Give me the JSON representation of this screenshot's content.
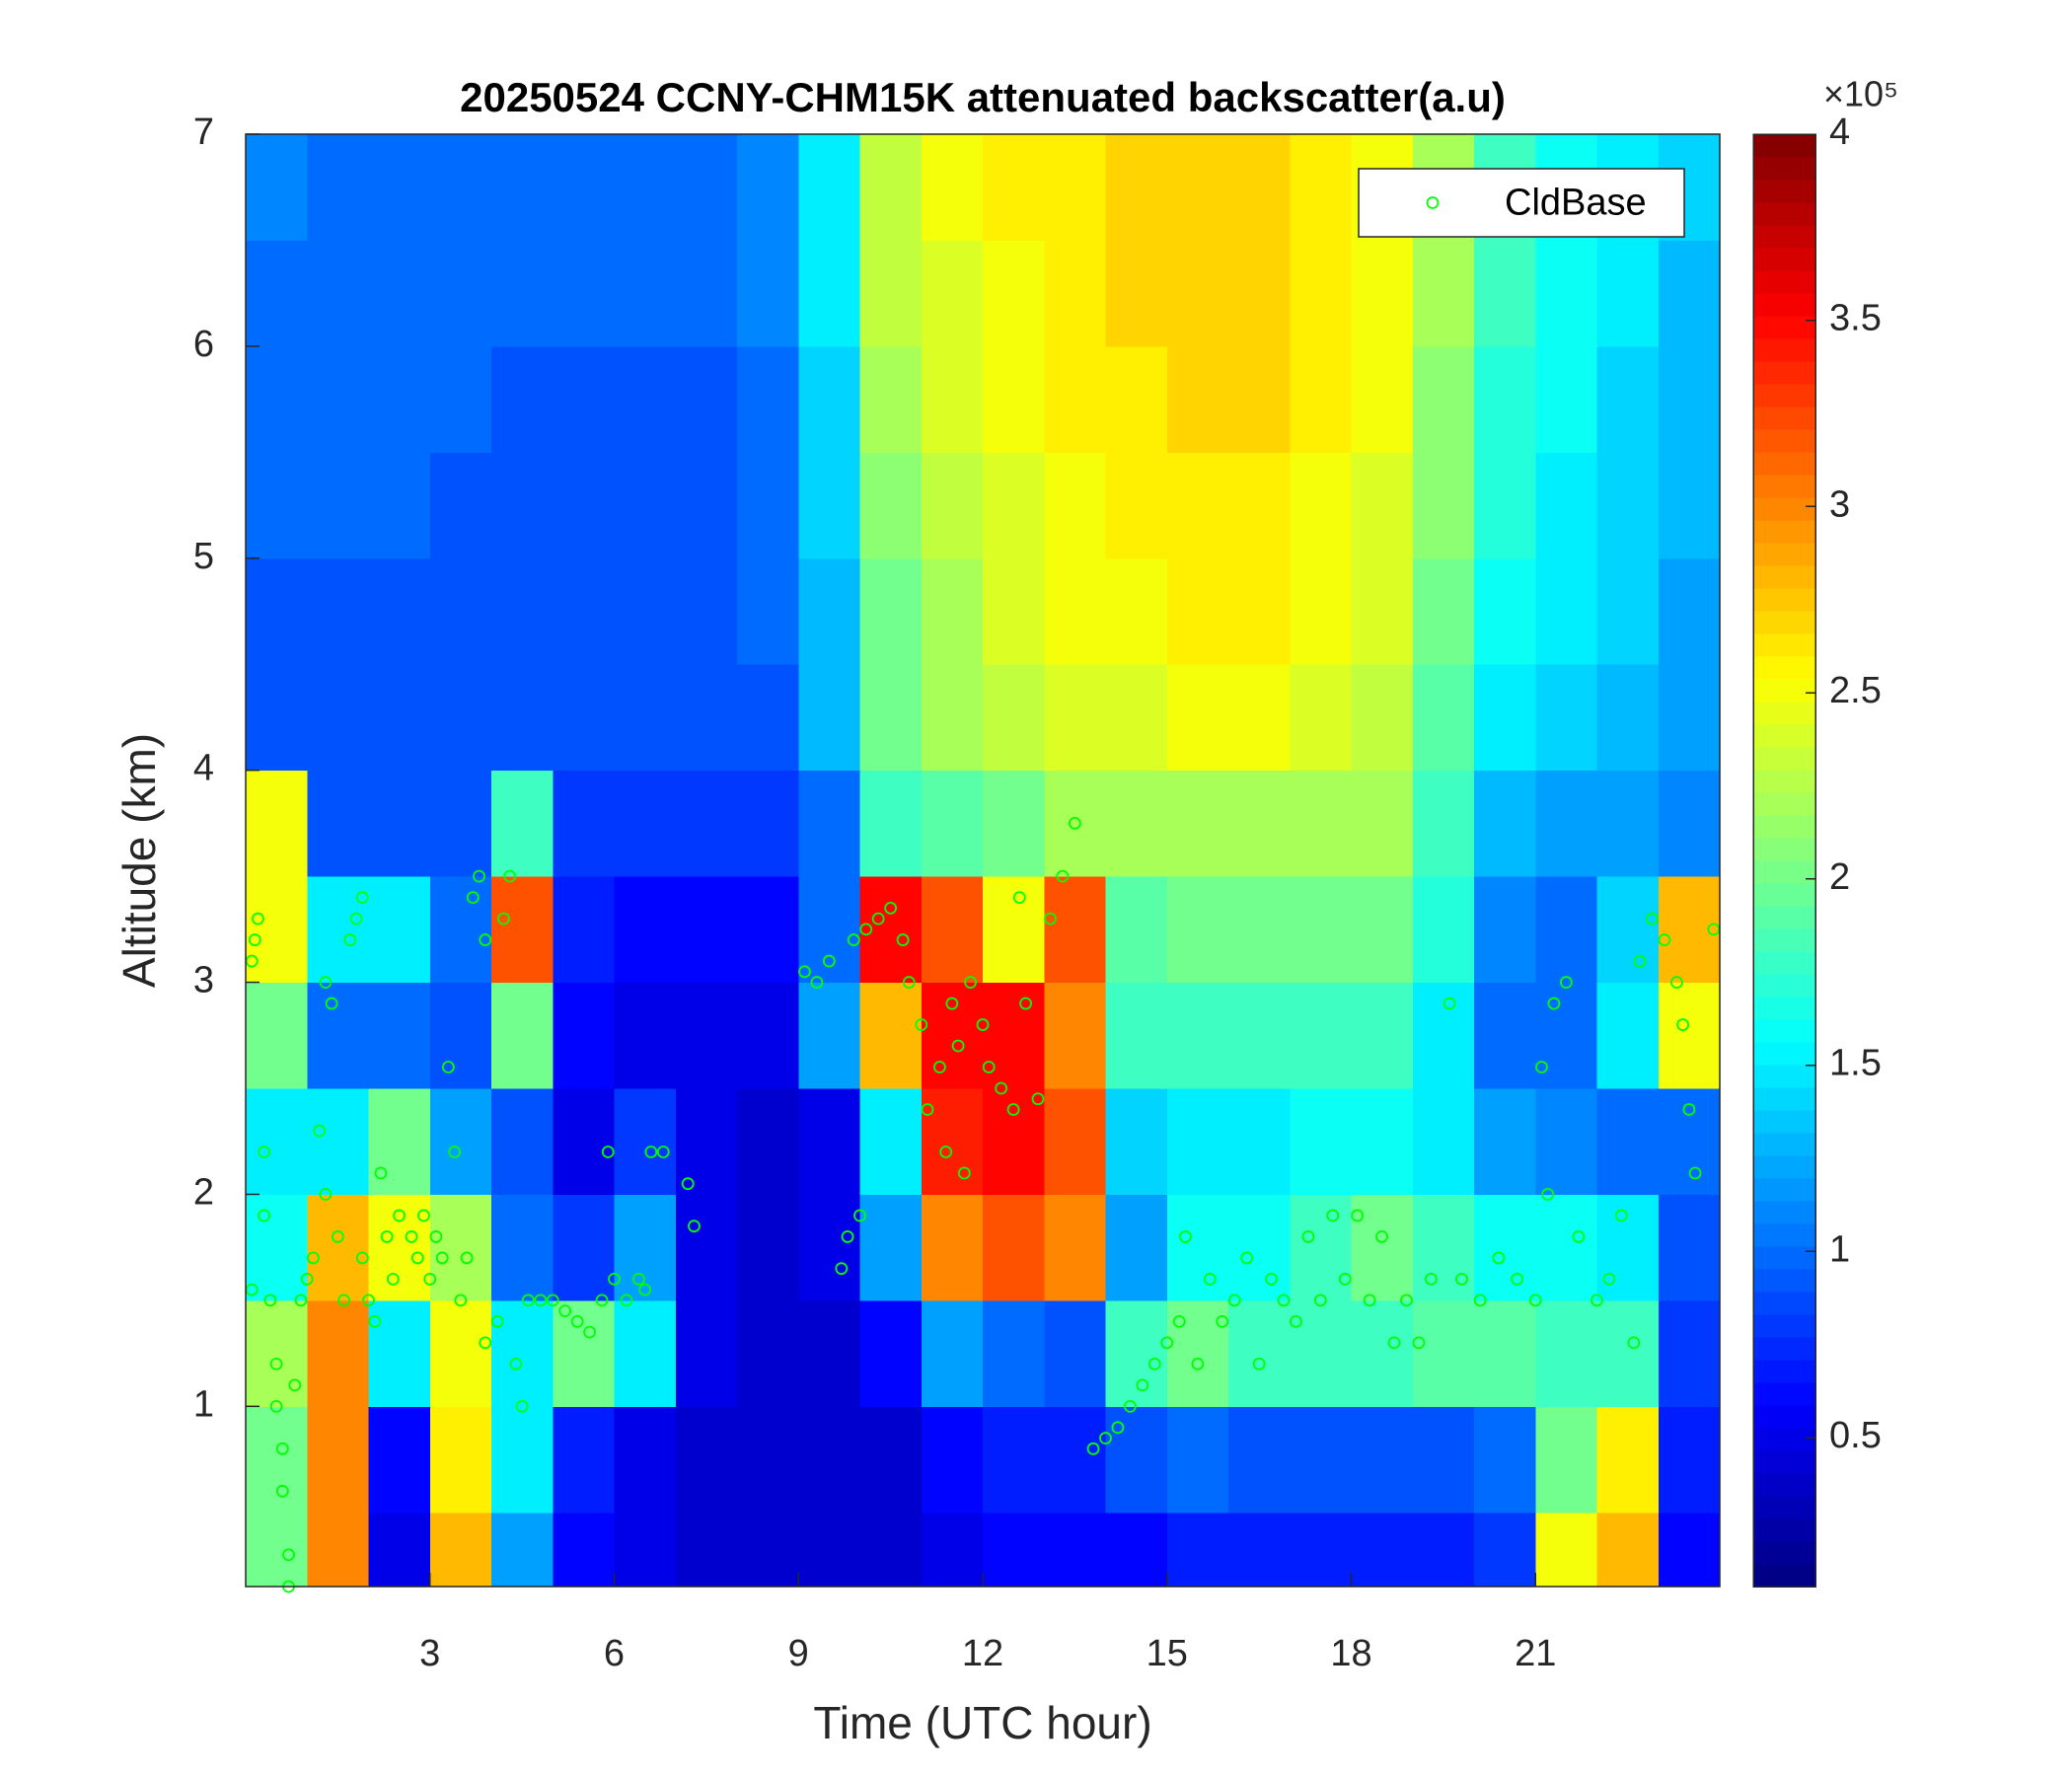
{
  "chart_data": {
    "type": "heatmap",
    "title": "20250524 CCNY-CHM15K attenuated backscatter(a.u)",
    "xlabel": "Time (UTC hour)",
    "ylabel": "Altitude (km)",
    "xlim": [
      0,
      24
    ],
    "ylim": [
      0.15,
      7
    ],
    "xticks": [
      3,
      6,
      9,
      12,
      15,
      18,
      21
    ],
    "yticks": [
      1,
      2,
      3,
      4,
      5,
      6,
      7
    ],
    "x_edges": [
      0,
      1,
      2,
      3,
      4,
      5,
      6,
      7,
      8,
      9,
      10,
      11,
      12,
      13,
      14,
      15,
      16,
      17,
      18,
      19,
      20,
      21,
      22,
      23,
      24
    ],
    "y_edges": [
      0.15,
      0.5,
      1,
      1.5,
      2,
      2.5,
      3,
      3.5,
      4,
      4.5,
      5,
      5.5,
      6,
      6.5,
      7
    ],
    "z": [
      [
        2.0,
        3.0,
        0.5,
        2.8,
        1.2,
        0.6,
        0.5,
        0.4,
        0.4,
        0.4,
        0.4,
        0.5,
        0.6,
        0.6,
        0.6,
        0.7,
        0.7,
        0.7,
        0.7,
        0.7,
        0.8,
        2.5,
        2.8,
        0.6
      ],
      [
        2.0,
        3.0,
        0.6,
        2.6,
        1.5,
        0.7,
        0.5,
        0.4,
        0.4,
        0.4,
        0.4,
        0.6,
        0.7,
        0.7,
        0.9,
        1.0,
        0.9,
        0.9,
        0.9,
        0.9,
        1.0,
        2.0,
        2.6,
        0.7
      ],
      [
        2.2,
        3.0,
        1.5,
        2.5,
        1.5,
        2.0,
        1.5,
        0.5,
        0.4,
        0.4,
        0.6,
        1.2,
        1.0,
        0.9,
        1.8,
        2.0,
        1.8,
        1.8,
        1.8,
        1.9,
        1.9,
        1.8,
        1.8,
        0.8
      ],
      [
        1.6,
        2.8,
        2.5,
        2.2,
        1.0,
        0.8,
        1.2,
        0.5,
        0.4,
        0.5,
        1.2,
        3.0,
        3.2,
        3.0,
        1.2,
        1.6,
        1.6,
        1.8,
        2.0,
        1.8,
        1.6,
        1.6,
        1.5,
        0.9
      ],
      [
        1.5,
        1.5,
        2.0,
        1.2,
        0.9,
        0.5,
        0.8,
        0.5,
        0.4,
        0.5,
        1.5,
        3.4,
        3.5,
        3.2,
        1.4,
        1.5,
        1.5,
        1.6,
        1.6,
        1.5,
        1.2,
        1.1,
        1.0,
        1.0
      ],
      [
        2.0,
        1.0,
        1.0,
        0.9,
        2.0,
        0.6,
        0.5,
        0.5,
        0.5,
        1.2,
        2.8,
        3.5,
        3.5,
        3.0,
        1.8,
        1.8,
        1.8,
        1.8,
        1.8,
        1.5,
        1.0,
        1.0,
        1.5,
        2.5
      ],
      [
        2.5,
        1.5,
        1.5,
        1.0,
        3.2,
        0.7,
        0.6,
        0.6,
        0.6,
        1.0,
        3.5,
        3.2,
        2.5,
        3.2,
        1.9,
        2.0,
        2.0,
        2.0,
        2.0,
        1.7,
        1.1,
        1.0,
        1.4,
        2.8
      ],
      [
        2.5,
        0.9,
        0.9,
        0.9,
        1.8,
        0.8,
        0.8,
        0.8,
        0.8,
        1.0,
        1.8,
        1.9,
        2.0,
        2.2,
        2.2,
        2.2,
        2.2,
        2.2,
        2.2,
        1.8,
        1.3,
        1.2,
        1.2,
        1.1
      ],
      [
        0.9,
        0.9,
        0.9,
        0.9,
        0.9,
        0.9,
        0.9,
        0.9,
        0.9,
        1.3,
        2.0,
        2.2,
        2.3,
        2.4,
        2.4,
        2.5,
        2.5,
        2.4,
        2.3,
        1.9,
        1.5,
        1.4,
        1.3,
        1.2
      ],
      [
        0.9,
        0.9,
        0.9,
        0.9,
        0.9,
        0.9,
        0.9,
        0.9,
        1.0,
        1.3,
        2.0,
        2.2,
        2.4,
        2.5,
        2.5,
        2.6,
        2.6,
        2.5,
        2.4,
        2.0,
        1.6,
        1.5,
        1.4,
        1.2
      ],
      [
        1.0,
        1.0,
        1.0,
        0.9,
        0.9,
        0.9,
        0.9,
        0.9,
        1.0,
        1.4,
        2.1,
        2.3,
        2.4,
        2.5,
        2.6,
        2.6,
        2.6,
        2.5,
        2.4,
        2.1,
        1.7,
        1.5,
        1.4,
        1.3
      ],
      [
        1.0,
        1.0,
        1.0,
        1.0,
        0.9,
        0.9,
        0.9,
        0.9,
        1.0,
        1.4,
        2.2,
        2.4,
        2.5,
        2.6,
        2.6,
        2.7,
        2.7,
        2.6,
        2.5,
        2.1,
        1.7,
        1.6,
        1.4,
        1.3
      ],
      [
        1.0,
        1.0,
        1.0,
        1.0,
        1.0,
        1.0,
        1.0,
        1.0,
        1.1,
        1.5,
        2.3,
        2.4,
        2.5,
        2.6,
        2.7,
        2.7,
        2.7,
        2.6,
        2.5,
        2.2,
        1.8,
        1.6,
        1.5,
        1.3
      ],
      [
        1.1,
        1.0,
        1.0,
        1.0,
        1.0,
        1.0,
        1.0,
        1.0,
        1.1,
        1.5,
        2.3,
        2.5,
        2.6,
        2.6,
        2.7,
        2.7,
        2.7,
        2.6,
        2.5,
        2.2,
        1.8,
        1.6,
        1.5,
        1.4
      ]
    ],
    "colormap": "jet",
    "clim": [
      0.1,
      4
    ],
    "cticks": [
      0.5,
      1,
      1.5,
      2,
      2.5,
      3,
      3.5,
      4
    ],
    "colorbar_exponent": "×10⁵",
    "legend": "upper right",
    "scatter": {
      "name": "CldBase",
      "color": "#00ff00",
      "x": [
        0.1,
        0.15,
        0.2,
        0.1,
        0.3,
        0.3,
        0.4,
        0.5,
        0.5,
        0.6,
        0.6,
        0.7,
        0.7,
        0.8,
        0.9,
        1.0,
        1.1,
        1.2,
        1.3,
        1.3,
        1.4,
        1.5,
        1.6,
        1.7,
        1.8,
        1.9,
        1.9,
        2.0,
        2.1,
        2.2,
        2.3,
        2.4,
        2.5,
        2.7,
        2.8,
        2.9,
        3.0,
        3.1,
        3.2,
        3.3,
        3.4,
        3.5,
        3.6,
        3.7,
        3.8,
        3.9,
        3.9,
        4.1,
        4.2,
        4.3,
        4.4,
        4.5,
        4.6,
        4.8,
        5.0,
        5.2,
        5.4,
        5.6,
        5.8,
        5.9,
        6.0,
        6.2,
        6.4,
        6.5,
        6.6,
        6.8,
        7.2,
        7.3,
        9.1,
        9.3,
        9.5,
        9.7,
        9.8,
        9.9,
        10.0,
        10.1,
        10.3,
        10.5,
        10.7,
        10.8,
        11.0,
        11.1,
        11.3,
        11.4,
        11.5,
        11.6,
        11.7,
        11.8,
        12.0,
        12.1,
        12.3,
        12.5,
        12.6,
        12.7,
        12.9,
        13.1,
        13.3,
        13.5,
        13.8,
        14.0,
        14.2,
        14.4,
        14.6,
        14.8,
        15.0,
        15.2,
        15.3,
        15.5,
        15.7,
        15.9,
        16.1,
        16.3,
        16.5,
        16.7,
        16.9,
        17.1,
        17.3,
        17.5,
        17.7,
        17.9,
        18.1,
        18.3,
        18.5,
        18.7,
        18.9,
        19.1,
        19.3,
        19.6,
        19.8,
        20.1,
        20.4,
        20.7,
        21.0,
        21.1,
        21.2,
        21.3,
        21.5,
        21.7,
        22.0,
        22.2,
        22.4,
        22.6,
        22.7,
        22.9,
        23.1,
        23.3,
        23.4,
        23.5,
        23.6,
        23.9
      ],
      "y": [
        3.1,
        3.2,
        3.3,
        1.55,
        2.2,
        1.9,
        1.5,
        1.2,
        1.0,
        0.8,
        0.6,
        0.3,
        0.15,
        1.1,
        1.5,
        1.6,
        1.7,
        2.3,
        2.0,
        3.0,
        2.9,
        1.8,
        1.5,
        3.2,
        3.3,
        3.4,
        1.7,
        1.5,
        1.4,
        2.1,
        1.8,
        1.6,
        1.9,
        1.8,
        1.7,
        1.9,
        1.6,
        1.8,
        1.7,
        2.6,
        2.2,
        1.5,
        1.7,
        3.4,
        3.5,
        3.2,
        1.3,
        1.4,
        3.3,
        3.5,
        1.2,
        1.0,
        1.5,
        1.5,
        1.5,
        1.45,
        1.4,
        1.35,
        1.5,
        2.2,
        1.6,
        1.5,
        1.6,
        1.55,
        2.2,
        2.2,
        2.05,
        1.85,
        3.05,
        3.0,
        3.1,
        1.65,
        1.8,
        3.2,
        1.9,
        3.25,
        3.3,
        3.35,
        3.2,
        3.0,
        2.8,
        2.4,
        2.6,
        2.2,
        2.9,
        2.7,
        2.1,
        3.0,
        2.8,
        2.6,
        2.5,
        2.4,
        3.4,
        2.9,
        2.45,
        3.3,
        3.5,
        3.75,
        0.8,
        0.85,
        0.9,
        1.0,
        1.1,
        1.2,
        1.3,
        1.4,
        1.8,
        1.2,
        1.6,
        1.4,
        1.5,
        1.7,
        1.2,
        1.6,
        1.5,
        1.4,
        1.8,
        1.5,
        1.9,
        1.6,
        1.9,
        1.5,
        1.8,
        1.3,
        1.5,
        1.3,
        1.6,
        2.9,
        1.6,
        1.5,
        1.7,
        1.6,
        1.5,
        2.6,
        2.0,
        2.9,
        3.0,
        1.8,
        1.5,
        1.6,
        1.9,
        1.3,
        3.1,
        3.3,
        3.2,
        3.0,
        2.8,
        2.4,
        2.1,
        3.25
      ]
    }
  }
}
